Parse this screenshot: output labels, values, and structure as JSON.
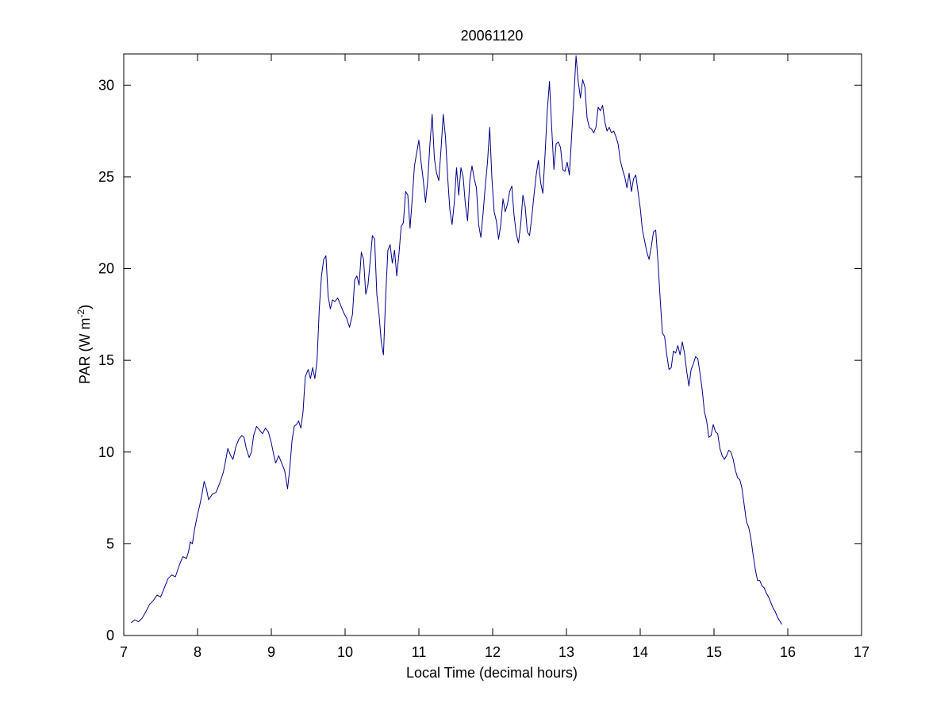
{
  "colors": {
    "background": "#ffffff",
    "axes": "#000000",
    "line": "#00008b"
  },
  "chart_data": {
    "type": "line",
    "title": "20061120",
    "xlabel": "Local Time (decimal hours)",
    "ylabel_main": "PAR (W m",
    "ylabel_sup": "-2",
    "ylabel_close": ")",
    "xlim": [
      7,
      17
    ],
    "ylim": [
      0,
      31.7
    ],
    "xticks": [
      7,
      8,
      9,
      10,
      11,
      12,
      13,
      14,
      15,
      16,
      17
    ],
    "yticks": [
      0,
      5,
      10,
      15,
      20,
      25,
      30
    ],
    "grid": false,
    "series": [
      {
        "color": "#00008b",
        "points": [
          [
            7.1,
            0.7
          ],
          [
            7.15,
            0.85
          ],
          [
            7.2,
            0.75
          ],
          [
            7.25,
            0.95
          ],
          [
            7.3,
            1.3
          ],
          [
            7.35,
            1.7
          ],
          [
            7.4,
            1.9
          ],
          [
            7.45,
            2.2
          ],
          [
            7.5,
            2.1
          ],
          [
            7.55,
            2.6
          ],
          [
            7.6,
            3.1
          ],
          [
            7.65,
            3.3
          ],
          [
            7.7,
            3.2
          ],
          [
            7.75,
            3.8
          ],
          [
            7.8,
            4.3
          ],
          [
            7.85,
            4.2
          ],
          [
            7.88,
            4.6
          ],
          [
            7.9,
            5.1
          ],
          [
            7.93,
            5.0
          ],
          [
            7.96,
            5.8
          ],
          [
            8.0,
            6.6
          ],
          [
            8.03,
            7.1
          ],
          [
            8.06,
            7.7
          ],
          [
            8.09,
            8.4
          ],
          [
            8.12,
            8.0
          ],
          [
            8.15,
            7.4
          ],
          [
            8.2,
            7.7
          ],
          [
            8.25,
            7.8
          ],
          [
            8.3,
            8.3
          ],
          [
            8.35,
            8.9
          ],
          [
            8.38,
            9.5
          ],
          [
            8.41,
            10.2
          ],
          [
            8.45,
            9.8
          ],
          [
            8.48,
            9.6
          ],
          [
            8.52,
            10.3
          ],
          [
            8.56,
            10.7
          ],
          [
            8.6,
            10.9
          ],
          [
            8.63,
            10.8
          ],
          [
            8.66,
            10.2
          ],
          [
            8.7,
            9.7
          ],
          [
            8.73,
            10.0
          ],
          [
            8.76,
            10.9
          ],
          [
            8.8,
            11.4
          ],
          [
            8.84,
            11.2
          ],
          [
            8.88,
            11.0
          ],
          [
            8.92,
            11.3
          ],
          [
            8.96,
            11.1
          ],
          [
            9.0,
            10.5
          ],
          [
            9.03,
            9.9
          ],
          [
            9.06,
            9.4
          ],
          [
            9.1,
            9.8
          ],
          [
            9.14,
            9.4
          ],
          [
            9.18,
            9.0
          ],
          [
            9.22,
            8.0
          ],
          [
            9.25,
            9.1
          ],
          [
            9.28,
            10.6
          ],
          [
            9.31,
            11.4
          ],
          [
            9.34,
            11.5
          ],
          [
            9.37,
            11.7
          ],
          [
            9.4,
            11.3
          ],
          [
            9.43,
            12.2
          ],
          [
            9.46,
            14.1
          ],
          [
            9.5,
            14.5
          ],
          [
            9.53,
            14.0
          ],
          [
            9.56,
            14.6
          ],
          [
            9.59,
            14.0
          ],
          [
            9.62,
            15.0
          ],
          [
            9.65,
            17.8
          ],
          [
            9.68,
            19.6
          ],
          [
            9.71,
            20.5
          ],
          [
            9.74,
            20.7
          ],
          [
            9.77,
            18.5
          ],
          [
            9.8,
            17.8
          ],
          [
            9.83,
            18.3
          ],
          [
            9.86,
            18.2
          ],
          [
            9.9,
            18.4
          ],
          [
            9.94,
            18.0
          ],
          [
            9.98,
            17.6
          ],
          [
            10.02,
            17.3
          ],
          [
            10.06,
            16.8
          ],
          [
            10.1,
            17.5
          ],
          [
            10.13,
            19.4
          ],
          [
            10.16,
            19.6
          ],
          [
            10.19,
            19.1
          ],
          [
            10.22,
            20.9
          ],
          [
            10.25,
            20.5
          ],
          [
            10.28,
            18.6
          ],
          [
            10.31,
            19.1
          ],
          [
            10.34,
            20.4
          ],
          [
            10.37,
            21.8
          ],
          [
            10.4,
            21.6
          ],
          [
            10.43,
            18.6
          ],
          [
            10.46,
            17.5
          ],
          [
            10.49,
            16.0
          ],
          [
            10.52,
            15.3
          ],
          [
            10.55,
            18.5
          ],
          [
            10.58,
            21.0
          ],
          [
            10.61,
            21.3
          ],
          [
            10.64,
            20.3
          ],
          [
            10.67,
            21.0
          ],
          [
            10.7,
            19.6
          ],
          [
            10.73,
            20.8
          ],
          [
            10.76,
            22.3
          ],
          [
            10.79,
            22.5
          ],
          [
            10.82,
            24.2
          ],
          [
            10.85,
            24.0
          ],
          [
            10.88,
            22.2
          ],
          [
            10.91,
            23.8
          ],
          [
            10.94,
            25.6
          ],
          [
            10.97,
            26.3
          ],
          [
            11.0,
            27.0
          ],
          [
            11.03,
            25.8
          ],
          [
            11.06,
            24.8
          ],
          [
            11.09,
            23.6
          ],
          [
            11.12,
            24.8
          ],
          [
            11.15,
            26.8
          ],
          [
            11.18,
            28.4
          ],
          [
            11.21,
            26.0
          ],
          [
            11.24,
            25.2
          ],
          [
            11.27,
            24.8
          ],
          [
            11.3,
            26.5
          ],
          [
            11.33,
            28.4
          ],
          [
            11.36,
            27.2
          ],
          [
            11.39,
            25.0
          ],
          [
            11.42,
            23.2
          ],
          [
            11.45,
            22.4
          ],
          [
            11.48,
            23.6
          ],
          [
            11.51,
            25.5
          ],
          [
            11.54,
            24.0
          ],
          [
            11.57,
            25.5
          ],
          [
            11.6,
            25.0
          ],
          [
            11.63,
            23.5
          ],
          [
            11.66,
            22.6
          ],
          [
            11.69,
            24.8
          ],
          [
            11.72,
            25.6
          ],
          [
            11.75,
            24.9
          ],
          [
            11.78,
            24.4
          ],
          [
            11.81,
            22.4
          ],
          [
            11.84,
            21.7
          ],
          [
            11.87,
            23.0
          ],
          [
            11.9,
            24.5
          ],
          [
            11.93,
            25.8
          ],
          [
            11.96,
            27.7
          ],
          [
            11.99,
            24.9
          ],
          [
            12.02,
            23.1
          ],
          [
            12.05,
            22.6
          ],
          [
            12.08,
            21.6
          ],
          [
            12.11,
            22.4
          ],
          [
            12.14,
            23.8
          ],
          [
            12.17,
            23.1
          ],
          [
            12.2,
            23.5
          ],
          [
            12.23,
            24.2
          ],
          [
            12.26,
            24.5
          ],
          [
            12.29,
            22.9
          ],
          [
            12.32,
            21.9
          ],
          [
            12.35,
            21.4
          ],
          [
            12.38,
            22.4
          ],
          [
            12.41,
            24.0
          ],
          [
            12.44,
            23.4
          ],
          [
            12.47,
            22.0
          ],
          [
            12.5,
            21.8
          ],
          [
            12.53,
            22.8
          ],
          [
            12.56,
            24.0
          ],
          [
            12.59,
            25.1
          ],
          [
            12.62,
            25.9
          ],
          [
            12.65,
            24.7
          ],
          [
            12.68,
            24.1
          ],
          [
            12.71,
            26.2
          ],
          [
            12.74,
            28.6
          ],
          [
            12.77,
            30.2
          ],
          [
            12.8,
            27.7
          ],
          [
            12.83,
            25.4
          ],
          [
            12.86,
            26.8
          ],
          [
            12.89,
            26.9
          ],
          [
            12.92,
            26.6
          ],
          [
            12.95,
            25.4
          ],
          [
            12.98,
            25.3
          ],
          [
            13.01,
            25.8
          ],
          [
            13.04,
            25.1
          ],
          [
            13.07,
            27.2
          ],
          [
            13.1,
            29.3
          ],
          [
            13.13,
            31.6
          ],
          [
            13.16,
            30.2
          ],
          [
            13.19,
            29.3
          ],
          [
            13.22,
            30.3
          ],
          [
            13.25,
            29.9
          ],
          [
            13.28,
            28.2
          ],
          [
            13.31,
            27.7
          ],
          [
            13.34,
            27.6
          ],
          [
            13.37,
            27.4
          ],
          [
            13.4,
            27.7
          ],
          [
            13.43,
            28.8
          ],
          [
            13.46,
            28.6
          ],
          [
            13.49,
            28.9
          ],
          [
            13.52,
            28.0
          ],
          [
            13.55,
            27.5
          ],
          [
            13.58,
            27.7
          ],
          [
            13.61,
            27.4
          ],
          [
            13.64,
            27.5
          ],
          [
            13.67,
            27.2
          ],
          [
            13.7,
            26.8
          ],
          [
            13.73,
            25.9
          ],
          [
            13.76,
            25.4
          ],
          [
            13.79,
            25.0
          ],
          [
            13.82,
            24.4
          ],
          [
            13.85,
            25.2
          ],
          [
            13.88,
            24.2
          ],
          [
            13.91,
            24.9
          ],
          [
            13.94,
            25.1
          ],
          [
            13.97,
            24.2
          ],
          [
            14.0,
            23.3
          ],
          [
            14.03,
            22.1
          ],
          [
            14.06,
            21.5
          ],
          [
            14.09,
            20.9
          ],
          [
            14.12,
            20.5
          ],
          [
            14.15,
            21.2
          ],
          [
            14.18,
            22.0
          ],
          [
            14.21,
            22.1
          ],
          [
            14.24,
            20.4
          ],
          [
            14.27,
            18.4
          ],
          [
            14.3,
            16.5
          ],
          [
            14.33,
            16.3
          ],
          [
            14.36,
            15.3
          ],
          [
            14.39,
            14.5
          ],
          [
            14.42,
            14.6
          ],
          [
            14.45,
            15.5
          ],
          [
            14.48,
            15.4
          ],
          [
            14.51,
            15.8
          ],
          [
            14.54,
            15.3
          ],
          [
            14.57,
            16.0
          ],
          [
            14.6,
            15.4
          ],
          [
            14.63,
            14.4
          ],
          [
            14.66,
            13.6
          ],
          [
            14.69,
            14.5
          ],
          [
            14.72,
            14.8
          ],
          [
            14.75,
            15.2
          ],
          [
            14.78,
            15.1
          ],
          [
            14.81,
            14.3
          ],
          [
            14.84,
            13.4
          ],
          [
            14.87,
            12.2
          ],
          [
            14.9,
            11.7
          ],
          [
            14.93,
            10.8
          ],
          [
            14.96,
            10.9
          ],
          [
            14.99,
            11.5
          ],
          [
            15.02,
            11.1
          ],
          [
            15.05,
            11.0
          ],
          [
            15.08,
            10.2
          ],
          [
            15.11,
            9.8
          ],
          [
            15.14,
            9.6
          ],
          [
            15.17,
            9.8
          ],
          [
            15.2,
            10.1
          ],
          [
            15.23,
            10.0
          ],
          [
            15.26,
            9.6
          ],
          [
            15.29,
            9.0
          ],
          [
            15.32,
            8.6
          ],
          [
            15.35,
            8.5
          ],
          [
            15.38,
            8.0
          ],
          [
            15.41,
            7.1
          ],
          [
            15.44,
            6.2
          ],
          [
            15.47,
            5.9
          ],
          [
            15.5,
            5.3
          ],
          [
            15.53,
            4.4
          ],
          [
            15.56,
            3.6
          ],
          [
            15.59,
            3.0
          ],
          [
            15.62,
            3.0
          ],
          [
            15.65,
            2.7
          ],
          [
            15.68,
            2.6
          ],
          [
            15.71,
            2.3
          ],
          [
            15.74,
            2.1
          ],
          [
            15.77,
            1.8
          ],
          [
            15.8,
            1.5
          ],
          [
            15.83,
            1.3
          ],
          [
            15.86,
            1.0
          ],
          [
            15.89,
            0.8
          ],
          [
            15.92,
            0.6
          ]
        ]
      }
    ]
  }
}
